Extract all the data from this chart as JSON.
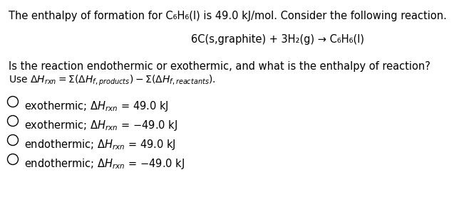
{
  "background_color": "#ffffff",
  "text_color": "#000000",
  "font_size": 10.5,
  "line1": "The enthalpy of formation for C₆H₆(l) is 49.0 kJ/mol. Consider the following reaction.",
  "line2": "6C(s,graphite) + 3H₂(g) → C₆H₆(l)",
  "line3": "Is the reaction endothermic or exothermic, and what is the enthalpy of reaction?",
  "choice_prefix": [
    "exothermic",
    "exothermic",
    "endothermic",
    "endothermic"
  ],
  "choice_suffix": [
    " = 49.0 kJ",
    " = −49.0 kJ",
    " = 49.0 kJ",
    " = −49.0 kJ"
  ]
}
